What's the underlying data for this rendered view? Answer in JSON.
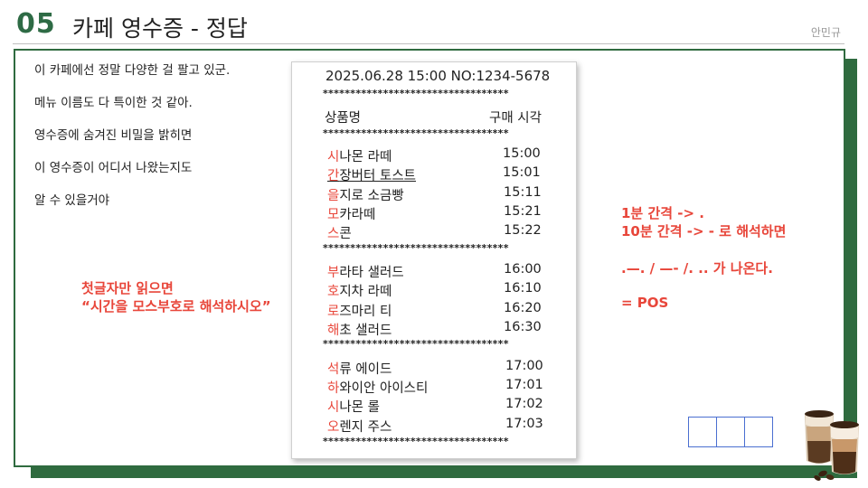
{
  "slide": {
    "number": "05",
    "title": "카페 영수증 - 정답",
    "author": "안민규"
  },
  "intro": [
    "이 카페에선 정말 다양한 걸 팔고 있군.",
    "메뉴 이름도 다 특이한 것 같아.",
    "영수증에 숨겨진 비밀을 밝히면",
    "이 영수증이 어디서 나왔는지도",
    "알 수 있을거야"
  ],
  "hint_left": [
    "첫글자만 읽으면",
    "“시간을 모스부호로 해석하시오”"
  ],
  "receipt": {
    "header": "2025.06.28 15:00 NO:1234-5678",
    "stars": "**********************************",
    "col_name": "상품명",
    "col_time": "구매 시각",
    "groups": [
      [
        {
          "first": "시",
          "rest": "나몬 라떼",
          "time": "15:00"
        },
        {
          "first": "간",
          "rest": "장버터 토스트",
          "time": "15:01"
        },
        {
          "first": "을",
          "rest": "지로 소금빵",
          "time": "15:11"
        },
        {
          "first": "모",
          "rest": "카라떼",
          "time": "15:21"
        },
        {
          "first": "스",
          "rest": "콘",
          "time": "15:22"
        }
      ],
      [
        {
          "first": "부",
          "rest": "라타 샐러드",
          "time": "16:00"
        },
        {
          "first": "호",
          "rest": "지차 라떼",
          "time": "16:10"
        },
        {
          "first": "로",
          "rest": "즈마리 티",
          "time": "16:20"
        },
        {
          "first": "해",
          "rest": "초 샐러드",
          "time": "16:30"
        }
      ],
      [
        {
          "first": "석",
          "rest": "류 에이드",
          "time": "17:00"
        },
        {
          "first": "하",
          "rest": "와이안 아이스티",
          "time": "17:01"
        },
        {
          "first": "시",
          "rest": "나몬 롤",
          "time": "17:02"
        },
        {
          "first": "오",
          "rest": "렌지 주스",
          "time": "17:03"
        }
      ]
    ]
  },
  "hint_right": {
    "rule1": "1분 간격 -> .",
    "rule2": "10분 간격 -> - 로 해석하면",
    "morse": ".—. / —- /. .. 가 나온다.",
    "answer": "= POS"
  },
  "colors": {
    "brand_green": "#2f6b3f",
    "highlight_red": "#e8463a",
    "answer_box_border": "#4a6fd1"
  },
  "icons": {
    "decoration": "coffee-cups-icon"
  }
}
